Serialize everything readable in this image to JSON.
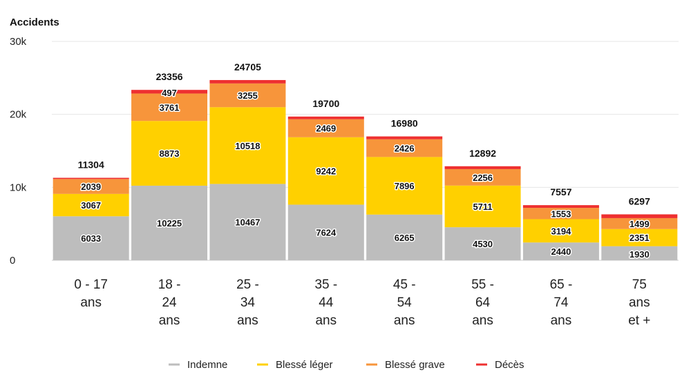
{
  "chart_data": {
    "type": "bar",
    "stacked": true,
    "title": "",
    "ylabel": "Accidents",
    "xlabel": "",
    "ylim": [
      0,
      30000
    ],
    "yticks": [
      {
        "value": 0,
        "label": "0"
      },
      {
        "value": 10000,
        "label": "10k"
      },
      {
        "value": 20000,
        "label": "20k"
      },
      {
        "value": 30000,
        "label": "30k"
      }
    ],
    "categories": [
      [
        "0 - 17",
        "ans"
      ],
      [
        "18 -",
        "24",
        "ans"
      ],
      [
        "25 -",
        "34",
        "ans"
      ],
      [
        "35 -",
        "44",
        "ans"
      ],
      [
        "45 -",
        "54",
        "ans"
      ],
      [
        "55 -",
        "64",
        "ans"
      ],
      [
        "65 -",
        "74",
        "ans"
      ],
      [
        "75",
        "ans",
        "et +"
      ]
    ],
    "series": [
      {
        "name": "Indemne",
        "color": "#bdbdbd",
        "values": [
          6033,
          10225,
          10467,
          7624,
          6265,
          4530,
          2440,
          1930
        ]
      },
      {
        "name": "Blessé léger",
        "color": "#ffd000",
        "values": [
          3067,
          8873,
          10518,
          9242,
          7896,
          5711,
          3194,
          2351
        ]
      },
      {
        "name": "Blessé grave",
        "color": "#f7953b",
        "values": [
          2039,
          3761,
          3255,
          2469,
          2426,
          2256,
          1553,
          1499
        ]
      },
      {
        "name": "Décès",
        "color": "#ee3030",
        "values": [
          165,
          497,
          465,
          365,
          393,
          395,
          370,
          517
        ]
      }
    ],
    "death_labels": [
      "",
      "497",
      "",
      "",
      "",
      "",
      "",
      ""
    ],
    "totals": [
      11304,
      23356,
      24705,
      19700,
      16980,
      12892,
      7557,
      6297
    ],
    "legend": "bottom",
    "grid": true
  }
}
